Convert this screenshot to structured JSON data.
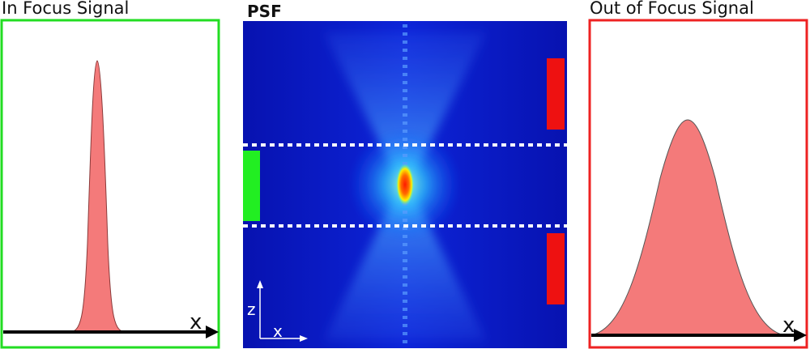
{
  "panels": {
    "left": {
      "title": "In Focus Signal",
      "axis_label": "x",
      "border_color": "#22dd22",
      "fill_color": "#f47a7a"
    },
    "center": {
      "title": "PSF",
      "z_label": "z",
      "x_label": "x"
    },
    "right": {
      "title": "Out of Focus Signal",
      "axis_label": "x",
      "border_color": "#ee2222",
      "fill_color": "#f47a7a"
    }
  },
  "markers": {
    "in_focus_color": "#22ee22",
    "out_of_focus_color": "#ee1111"
  },
  "colors": {
    "psf_background": "#0a14c8",
    "psf_glow": "#1ea8ff",
    "psf_core": "#ff2200",
    "guide_lines": "#ffffff"
  }
}
